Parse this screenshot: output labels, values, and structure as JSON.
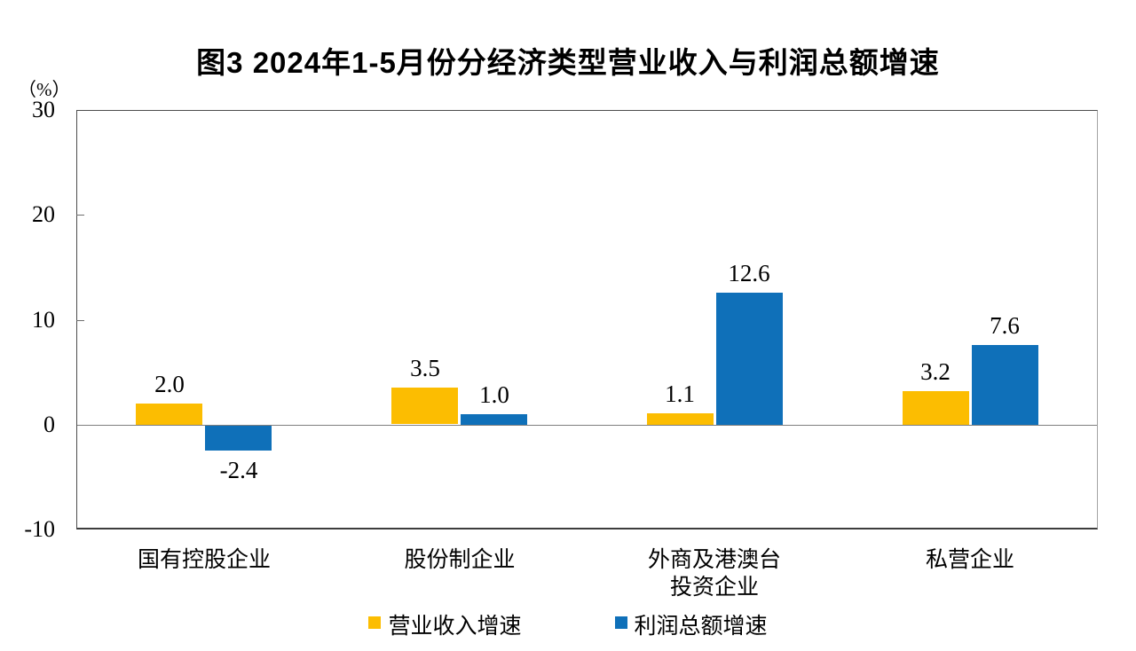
{
  "chart_data": {
    "type": "bar",
    "title": "图3 2024年1-5月份分经济类型营业收入与利润总额增速",
    "ylabel": "（%）",
    "xlabel": "",
    "ylim": [
      -10,
      30
    ],
    "yticks": [
      30,
      20,
      10,
      0,
      -10
    ],
    "grid": false,
    "legend_position": "bottom",
    "categories": [
      "国有控股企业",
      "股份制企业",
      "外商及港澳台\n投资企业",
      "私营企业"
    ],
    "series": [
      {
        "name": "营业收入增速",
        "color": "#FCBD01",
        "values": [
          2.0,
          3.5,
          1.1,
          3.2
        ]
      },
      {
        "name": "利润总额增速",
        "color": "#0F70B9",
        "values": [
          -2.4,
          1.0,
          12.6,
          7.6
        ]
      }
    ],
    "value_label_decimals": 1
  },
  "colors": {
    "background": "#ffffff",
    "text": "#000000",
    "zero_line": "#7f7f7f",
    "tick_mark": "#6e6e6e",
    "series_revenue": "#FCBD01",
    "series_profit": "#0F70B9"
  }
}
